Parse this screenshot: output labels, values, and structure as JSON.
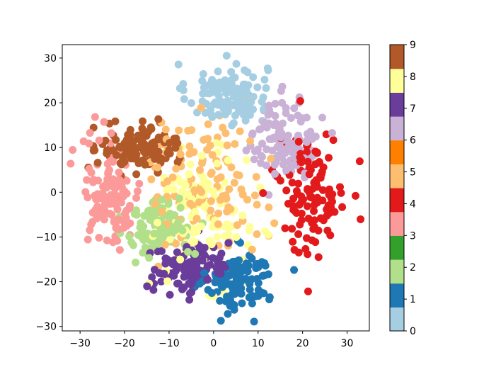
{
  "chart_data": {
    "type": "scatter",
    "title": "",
    "xlabel": "",
    "ylabel": "",
    "xlim": [
      -34,
      35
    ],
    "ylim": [
      -31,
      33
    ],
    "xticks": [
      -30,
      -20,
      -10,
      0,
      10,
      20,
      30
    ],
    "yticks": [
      -30,
      -20,
      -10,
      0,
      10,
      20,
      30
    ],
    "grid": false,
    "colormap": "Paired",
    "colorbar": {
      "range": [
        0,
        9
      ],
      "ticks": [
        0,
        1,
        2,
        3,
        4,
        5,
        6,
        7,
        8,
        9
      ],
      "colors": [
        "#a6cee3",
        "#1f78b4",
        "#b2df8a",
        "#33a02c",
        "#fb9a99",
        "#e31a1c",
        "#fdbf6f",
        "#ff7f00",
        "#cab2d6",
        "#6a3d9a",
        "#ffff99",
        "#b15928"
      ]
    },
    "series": [
      {
        "label": 0,
        "color": "#a6cee3",
        "center": [
          3,
          22
        ],
        "spread": [
          6,
          4.5
        ],
        "count": 120
      },
      {
        "label": 1,
        "color": "#1f78b4",
        "center": [
          6,
          -20
        ],
        "spread": [
          5,
          4.5
        ],
        "count": 120
      },
      {
        "label": 2,
        "color": "#b2df8a",
        "center": [
          -12,
          -8
        ],
        "spread": [
          5,
          4.5
        ],
        "count": 120
      },
      {
        "label": 3,
        "color": "#fb9a99",
        "center": [
          -23,
          0
        ],
        "spread": [
          4.5,
          8
        ],
        "count": 120
      },
      {
        "label": 4,
        "color": "#e31a1c",
        "center": [
          22,
          0
        ],
        "spread": [
          5,
          9
        ],
        "count": 120
      },
      {
        "label": 5,
        "color": "#fdbf6f",
        "center": [
          -2,
          2
        ],
        "spread": [
          9,
          10
        ],
        "count": 120
      },
      {
        "label": 6,
        "color": "#cab2d6",
        "center": [
          16,
          12
        ],
        "spread": [
          5,
          6
        ],
        "count": 120
      },
      {
        "label": 7,
        "color": "#6a3d9a",
        "center": [
          -5,
          -17
        ],
        "spread": [
          6,
          4
        ],
        "count": 120
      },
      {
        "label": 8,
        "color": "#ffff99",
        "center": [
          -3,
          -5
        ],
        "spread": [
          7,
          9
        ],
        "count": 120
      },
      {
        "label": 9,
        "color": "#b15928",
        "center": [
          -17,
          10
        ],
        "spread": [
          6,
          3.5
        ],
        "count": 120
      }
    ]
  }
}
